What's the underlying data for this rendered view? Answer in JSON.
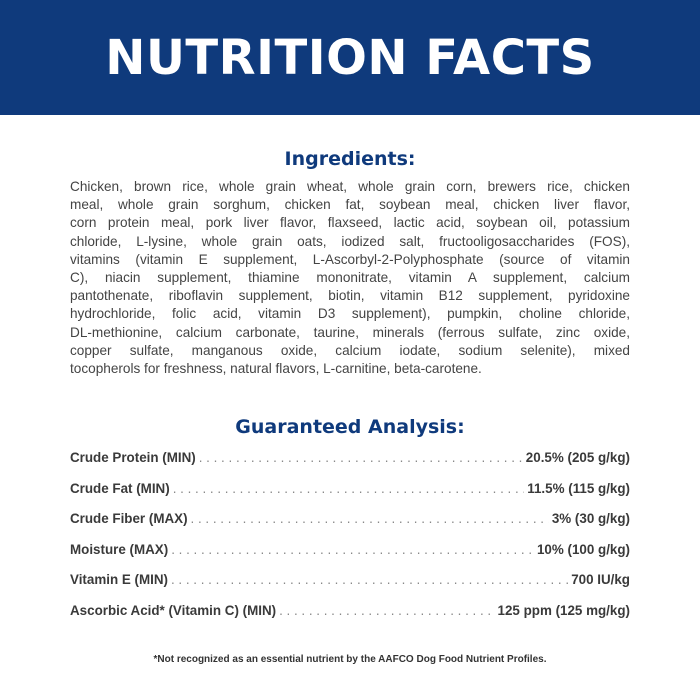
{
  "header": {
    "title": "NUTRITION FACTS",
    "color": "#0f3a7c"
  },
  "ingredients": {
    "heading": "Ingredients:",
    "lines": [
      "Chicken, brown rice, whole grain wheat, whole grain corn, brewers rice, chicken",
      "meal, whole grain sorghum, chicken fat, soybean meal, chicken liver flavor,",
      "corn protein meal, pork liver flavor, flaxseed, lactic acid, soybean oil, potassium",
      "chloride, L-lysine, whole grain oats, iodized salt, fructooligosaccharides (FOS),",
      "vitamins (vitamin E supplement, L-Ascorbyl-2-Polyphosphate (source of vitamin",
      "C), niacin supplement, thiamine mononitrate, vitamin A supplement, calcium",
      "pantothenate, riboflavin supplement, biotin, vitamin B12 supplement, pyridoxine",
      "hydrochloride, folic acid, vitamin D3 supplement), pumpkin, choline chloride,",
      "DL-methionine, calcium carbonate, taurine, minerals (ferrous sulfate, zinc oxide,",
      "copper sulfate, manganous oxide, calcium iodate, sodium selenite), mixed",
      "tocopherols for freshness, natural flavors, L-carnitine, beta-carotene."
    ]
  },
  "analysis": {
    "heading": "Guaranteed Analysis:",
    "rows": [
      {
        "label": "Crude Protein (MIN)",
        "value": "20.5% (205 g/kg)"
      },
      {
        "label": "Crude Fat (MIN)",
        "value": "11.5% (115 g/kg)"
      },
      {
        "label": "Crude Fiber (MAX)",
        "value": "3% (30 g/kg)"
      },
      {
        "label": "Moisture (MAX)",
        "value": "10% (100 g/kg)"
      },
      {
        "label": "Vitamin E (MIN)",
        "value": "700 IU/kg"
      },
      {
        "label": "Ascorbic Acid* (Vitamin C) (MIN)",
        "value": "125 ppm (125 mg/kg)"
      }
    ]
  },
  "footnote": "*Not recognized as an essential nutrient by the AAFCO Dog Food Nutrient Profiles."
}
